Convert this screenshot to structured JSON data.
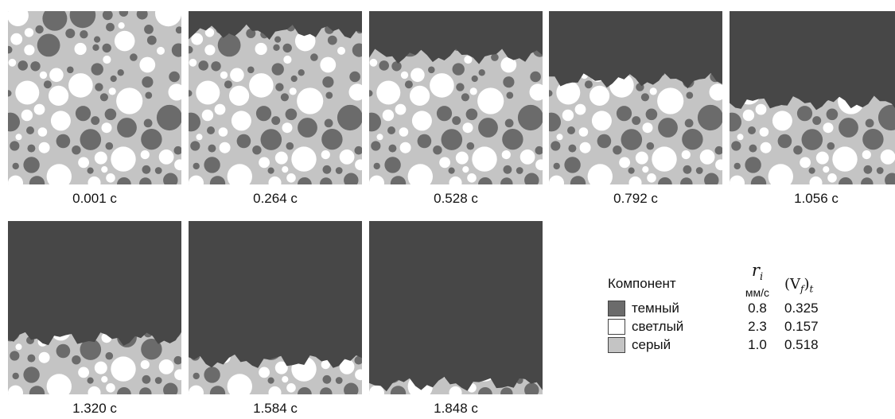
{
  "colors": {
    "dark": "#6b6b6b",
    "light": "#ffffff",
    "gray": "#c4c4c4",
    "burned": "#474747"
  },
  "panels": [
    {
      "time": "0.001 с",
      "burn_front": 0.0
    },
    {
      "time": "0.264 с",
      "burn_front": 0.12
    },
    {
      "time": "0.528 с",
      "burn_front": 0.26
    },
    {
      "time": "0.792 с",
      "burn_front": 0.4
    },
    {
      "time": "1.056 с",
      "burn_front": 0.53
    },
    {
      "time": "1.320 с",
      "burn_front": 0.68
    },
    {
      "time": "1.584 с",
      "burn_front": 0.81
    },
    {
      "time": "1.848 с",
      "burn_front": 0.94
    }
  ],
  "legend": {
    "header_component": "Компонент",
    "header_rate_symbol": "r",
    "header_rate_sub": "i",
    "header_rate_unit": "мм/с",
    "header_vf": "(Vf)t",
    "header_vf_base": "(V",
    "header_vf_sub": "f",
    "header_vf_close": ")",
    "header_vf_outer": "t",
    "items": [
      {
        "name": "темный",
        "rate": "0.8",
        "vf": "0.325",
        "color": "#6b6b6b"
      },
      {
        "name": "светлый",
        "rate": "2.3",
        "vf": "0.157",
        "color": "#ffffff"
      },
      {
        "name": "серый",
        "rate": "1.0",
        "vf": "0.518",
        "color": "#c4c4c4"
      }
    ]
  }
}
